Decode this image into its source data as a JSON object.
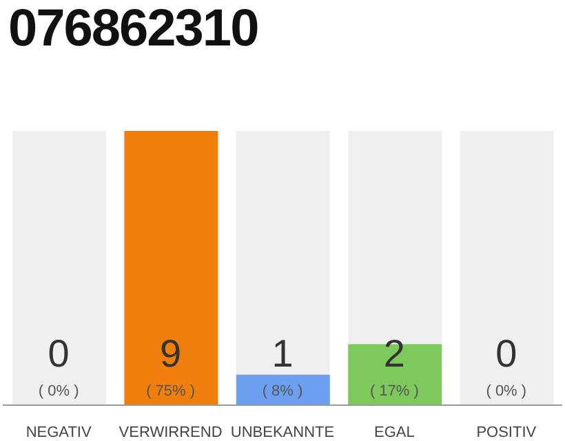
{
  "chart_data": {
    "type": "bar",
    "title": "076862310",
    "categories": [
      "NEGATIV",
      "VERWIRREND",
      "UNBEKANNTE",
      "EGAL",
      "POSITIV"
    ],
    "values": [
      0,
      9,
      1,
      2,
      0
    ],
    "colors": [
      "#efefef",
      "#f07e0c",
      "#6c9ff0",
      "#7ec95c",
      "#efefef"
    ],
    "data_labels": true,
    "annotations": [
      "( 0% )",
      "( 75% )",
      "( 8% )",
      "( 17% )",
      "( 0% )"
    ],
    "grid": false,
    "legend": false
  }
}
